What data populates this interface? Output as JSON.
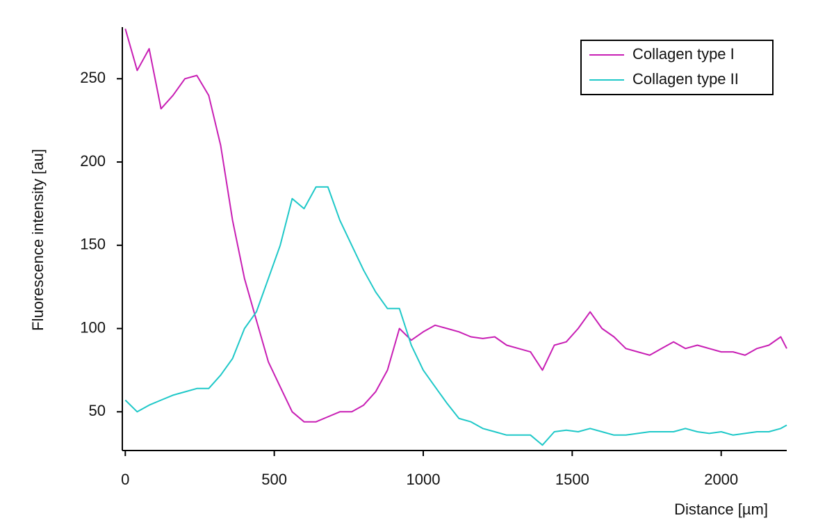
{
  "chart_data": {
    "type": "line",
    "xlabel": "Distance [µm]",
    "ylabel": "Fluorescence intensity [au]",
    "x": [
      0,
      40,
      80,
      120,
      160,
      200,
      240,
      280,
      320,
      360,
      400,
      440,
      480,
      520,
      560,
      600,
      640,
      680,
      720,
      760,
      800,
      840,
      880,
      920,
      960,
      1000,
      1040,
      1080,
      1120,
      1160,
      1200,
      1240,
      1280,
      1320,
      1360,
      1400,
      1440,
      1480,
      1520,
      1560,
      1600,
      1640,
      1680,
      1720,
      1760,
      1800,
      1840,
      1880,
      1920,
      1960,
      2000,
      2040,
      2080,
      2120,
      2160,
      2200,
      2220
    ],
    "series": [
      {
        "name": "Collagen type I",
        "color": "#c81eb4",
        "values": [
          280,
          255,
          268,
          232,
          240,
          250,
          252,
          240,
          210,
          165,
          130,
          105,
          80,
          65,
          50,
          44,
          44,
          47,
          50,
          50,
          54,
          62,
          75,
          100,
          93,
          98,
          102,
          100,
          98,
          95,
          94,
          95,
          90,
          88,
          86,
          75,
          90,
          92,
          100,
          110,
          100,
          95,
          88,
          86,
          84,
          88,
          92,
          88,
          90,
          88,
          86,
          86,
          84,
          88,
          90,
          95,
          88
        ]
      },
      {
        "name": "Collagen type II",
        "color": "#1ec8c8",
        "values": [
          57,
          50,
          54,
          57,
          60,
          62,
          64,
          64,
          72,
          82,
          100,
          110,
          130,
          150,
          178,
          172,
          185,
          185,
          165,
          150,
          135,
          122,
          112,
          112,
          90,
          75,
          65,
          55,
          46,
          44,
          40,
          38,
          36,
          36,
          36,
          30,
          38,
          39,
          38,
          40,
          38,
          36,
          36,
          37,
          38,
          38,
          38,
          40,
          38,
          37,
          38,
          36,
          37,
          38,
          38,
          40,
          42
        ]
      }
    ],
    "xlim": [
      -10,
      2220
    ],
    "ylim": [
      28,
      281
    ],
    "xticks": [
      0,
      500,
      1000,
      1500,
      2000
    ],
    "yticks": [
      50,
      100,
      150,
      200,
      250
    ],
    "legend": "top-right"
  }
}
